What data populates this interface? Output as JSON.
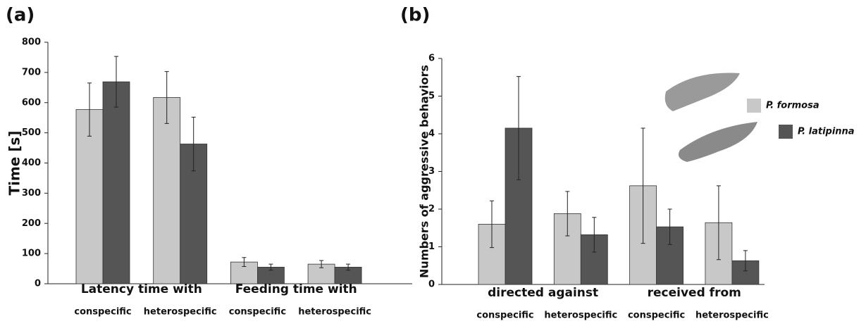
{
  "chart_data": [
    {
      "type": "bar",
      "title": "(a)",
      "ylabel": "Time [s]",
      "group_labels": [
        "Latency time with",
        "Feeding time with"
      ],
      "categories": [
        "conspecific",
        "heterospecific",
        "conspecific",
        "heterospecific"
      ],
      "series": [
        {
          "color": "#c8c8c8",
          "values": [
            577,
            617,
            72,
            65
          ],
          "errors": [
            88,
            86,
            15,
            12
          ]
        },
        {
          "color": "#555555",
          "values": [
            669,
            463,
            55,
            55
          ],
          "errors": [
            84,
            89,
            10,
            10
          ]
        }
      ],
      "ylim": [
        0,
        800
      ],
      "yticks": [
        0,
        100,
        200,
        300,
        400,
        500,
        600,
        700,
        800
      ],
      "grid": false
    },
    {
      "type": "bar",
      "title": "(b)",
      "ylabel": "Numbers of aggressive behaviors",
      "group_labels": [
        "directed against",
        "received from"
      ],
      "categories": [
        "conspecific",
        "heterospecific",
        "conspecific",
        "heterospecific"
      ],
      "series": [
        {
          "name": "P. formosa",
          "color": "#c8c8c8",
          "values": [
            1.6,
            1.88,
            2.62,
            1.64
          ],
          "errors": [
            0.62,
            0.59,
            1.53,
            0.98
          ]
        },
        {
          "name": "P. latipinna",
          "color": "#555555",
          "values": [
            4.15,
            1.32,
            1.53,
            0.63
          ],
          "errors": [
            1.37,
            0.46,
            0.47,
            0.27
          ]
        }
      ],
      "ylim": [
        0,
        6
      ],
      "yticks": [
        0,
        1,
        2,
        3,
        4,
        5,
        6
      ],
      "grid": false,
      "legend": "top-right"
    }
  ]
}
